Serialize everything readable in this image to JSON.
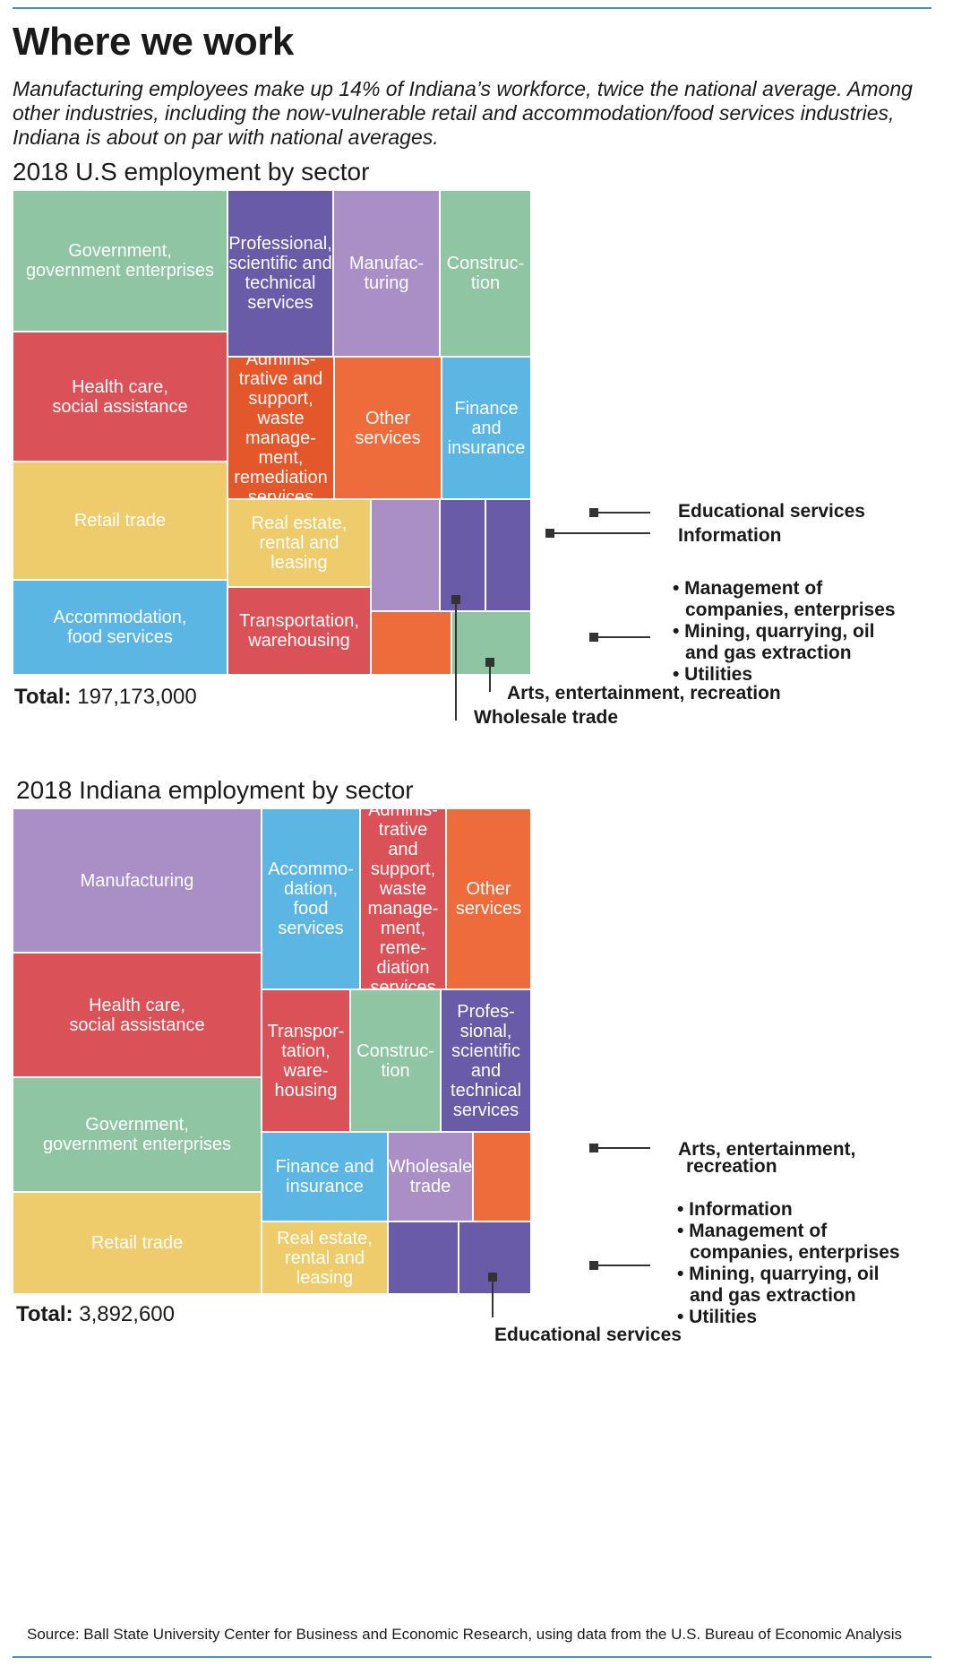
{
  "header": {
    "title": "Where we work",
    "subtitle": "Manufacturing employees make up 14% of Indiana’s workforce, twice the national average. Among other industries, including the now-vulnerable retail and accommodation/food services industries, Indiana is about on par with national averages."
  },
  "colors": {
    "green": "#8fc5a3",
    "purple": "#6a5ba8",
    "lavender": "#aa8fc6",
    "red": "#da5257",
    "orange": "#ee6b3b",
    "darkorange": "#e4572a",
    "yellow": "#eecb6b",
    "blue": "#5bb6e4",
    "accent_line": "#4a8fc0"
  },
  "us": {
    "title": "2018 U.S employment by sector",
    "total_label": "Total:",
    "total_value": "197,173,000",
    "annotations": {
      "educational": "Educational services",
      "information": "Information",
      "bullets": [
        "• Management of",
        "companies, enterprises",
        "• Mining, quarrying, oil",
        "and gas extraction",
        "• Utilities"
      ],
      "arts": "Arts, entertainment, recreation",
      "wholesale": "Wholesale trade"
    }
  },
  "indiana": {
    "title": "2018 Indiana employment by sector",
    "total_label": "Total:",
    "total_value": "3,892,600",
    "annotations": {
      "arts_1": "Arts, entertainment,",
      "arts_2": "recreation",
      "bullets": [
        "• Information",
        "• Management of",
        "companies, enterprises",
        "• Mining, quarrying, oil",
        "and gas extraction",
        "• Utilities"
      ],
      "educational": "Educational services"
    }
  },
  "chart_data": [
    {
      "type": "treemap",
      "title": "2018 U.S employment by sector",
      "total": 197173000,
      "items": [
        {
          "name": "Government, government enterprises",
          "label": "Government,\ngovernment enterprises",
          "color": "green"
        },
        {
          "name": "Health care, social assistance",
          "label": "Health care,\nsocial assistance",
          "color": "red"
        },
        {
          "name": "Retail trade",
          "label": "Retail trade",
          "color": "yellow"
        },
        {
          "name": "Accommodation, food services",
          "label": "Accommodation,\nfood services",
          "color": "blue"
        },
        {
          "name": "Professional, scientific and technical services",
          "label": "Professional,\nscientific and\ntechnical\nservices",
          "color": "purple"
        },
        {
          "name": "Manufacturing",
          "label": "Manufac-\nturing",
          "color": "lavender"
        },
        {
          "name": "Construction",
          "label": "Construc-\ntion",
          "color": "green"
        },
        {
          "name": "Administrative and support, waste management, remediation services",
          "label": "Adminis-\ntrative and\nsupport,\nwaste\nmanage-\nment,\nremediation\nservices",
          "color": "darkorange"
        },
        {
          "name": "Other services",
          "label": "Other\nservices",
          "color": "orange"
        },
        {
          "name": "Finance and insurance",
          "label": "Finance\nand\ninsurance",
          "color": "blue"
        },
        {
          "name": "Real estate, rental and leasing",
          "label": "Real estate,\nrental and leasing",
          "color": "yellow"
        },
        {
          "name": "Transportation, warehousing",
          "label": "Transportation,\nwarehousing",
          "color": "red"
        },
        {
          "name": "Wholesale trade",
          "label": "",
          "color": "lavender"
        },
        {
          "name": "Information",
          "label": "",
          "color": "purple"
        },
        {
          "name": "Educational services",
          "label": "",
          "color": "purple"
        },
        {
          "name": "Arts, entertainment, recreation",
          "label": "",
          "color": "orange"
        },
        {
          "name": "Management of companies, enterprises; Mining, quarrying, oil and gas extraction; Utilities",
          "label": "",
          "color": "green"
        }
      ]
    },
    {
      "type": "treemap",
      "title": "2018 Indiana employment by sector",
      "total": 3892600,
      "items": [
        {
          "name": "Manufacturing",
          "label": "Manufacturing",
          "color": "lavender"
        },
        {
          "name": "Health care, social assistance",
          "label": "Health care,\nsocial assistance",
          "color": "red"
        },
        {
          "name": "Government, government enterprises",
          "label": "Government,\ngovernment enterprises",
          "color": "green"
        },
        {
          "name": "Retail trade",
          "label": "Retail trade",
          "color": "yellow"
        },
        {
          "name": "Accommodation, food services",
          "label": "Accommo-\ndation,\nfood\nservices",
          "color": "blue"
        },
        {
          "name": "Administrative and support, waste management, remediation services",
          "label": "Adminis-\ntrative and\nsupport,\nwaste\nmanage-\nment,\nreme-\ndiation\nservices",
          "color": "red"
        },
        {
          "name": "Other services",
          "label": "Other\nservices",
          "color": "orange"
        },
        {
          "name": "Transportation, warehousing",
          "label": "Transpor-\ntation,\nware-\nhousing",
          "color": "red"
        },
        {
          "name": "Construction",
          "label": "Construc-\ntion",
          "color": "green"
        },
        {
          "name": "Professional, scientific and technical services",
          "label": "Profes-\nsional,\nscientific\nand\ntechnical\nservices",
          "color": "purple"
        },
        {
          "name": "Finance and insurance",
          "label": "Finance and\ninsurance",
          "color": "blue"
        },
        {
          "name": "Wholesale trade",
          "label": "Wholesale\ntrade",
          "color": "lavender"
        },
        {
          "name": "Arts, entertainment, recreation",
          "label": "",
          "color": "orange"
        },
        {
          "name": "Real estate, rental and leasing",
          "label": "Real estate,\nrental and\nleasing",
          "color": "yellow"
        },
        {
          "name": "Educational services",
          "label": "",
          "color": "purple"
        },
        {
          "name": "Information; Management of companies, enterprises; Mining, quarrying, oil and gas extraction; Utilities",
          "label": "",
          "color": "purple"
        }
      ]
    }
  ],
  "footer": {
    "source": "Source: Ball State University Center for Business and Economic Research, using data from the U.S. Bureau of Economic Analysis"
  }
}
